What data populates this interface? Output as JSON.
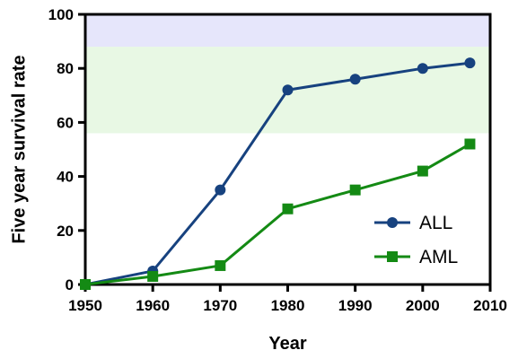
{
  "chart_data": {
    "type": "line",
    "title": "",
    "xlabel": "Year",
    "ylabel": "Five year survival rate",
    "xlim": [
      1950,
      2010
    ],
    "ylim": [
      0,
      100
    ],
    "x_ticks": [
      1950,
      1960,
      1970,
      1980,
      1990,
      2000,
      2010
    ],
    "y_ticks": [
      0,
      20,
      40,
      60,
      80,
      100
    ],
    "grid": false,
    "legend_position": "lower-right",
    "bands": [
      {
        "y0": 88,
        "y1": 100,
        "color": "#e6e6fb"
      },
      {
        "y0": 56,
        "y1": 88,
        "color": "#e8f8e4"
      }
    ],
    "series": [
      {
        "name": "ALL",
        "color": "#17427f",
        "marker": "circle",
        "x": [
          1950,
          1960,
          1970,
          1980,
          1990,
          2000,
          2007
        ],
        "y": [
          0,
          5,
          35,
          72,
          76,
          80,
          82
        ]
      },
      {
        "name": "AML",
        "color": "#148a14",
        "marker": "square",
        "x": [
          1950,
          1960,
          1970,
          1980,
          1990,
          2000,
          2007
        ],
        "y": [
          0,
          3,
          7,
          28,
          35,
          42,
          52
        ]
      }
    ]
  }
}
